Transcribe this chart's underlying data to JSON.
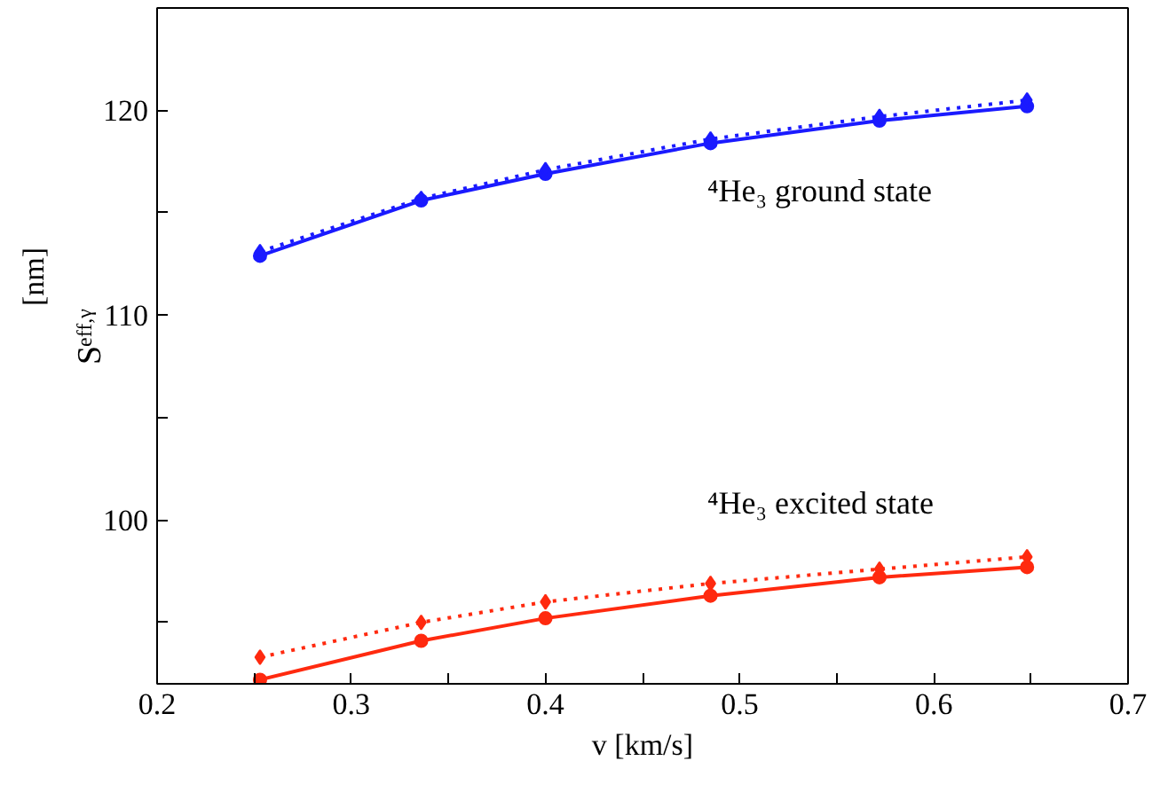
{
  "chart_data": {
    "type": "line",
    "xlabel": "v [km/s]",
    "ylabel": "S$_{eff,γ}$ [nm]",
    "x": [
      0.253,
      0.336,
      0.4,
      0.485,
      0.572,
      0.648
    ],
    "series": [
      {
        "color": "#1a1aff",
        "line_style": "solid",
        "marker": "circle",
        "values": [
          112.9,
          115.6,
          116.9,
          118.4,
          119.5,
          120.2
        ]
      },
      {
        "color": "#1a1aff",
        "line_style": "dotted",
        "marker": "diamond",
        "values": [
          113.1,
          115.7,
          117.1,
          118.6,
          119.7,
          120.5
        ]
      },
      {
        "color": "#ff2a0f",
        "line_style": "solid",
        "marker": "circle",
        "values": [
          92.2,
          94.1,
          95.2,
          96.3,
          97.2,
          97.7
        ]
      },
      {
        "color": "#ff2a0f",
        "line_style": "dotted",
        "marker": "diamond",
        "values": [
          93.3,
          95.0,
          96.0,
          96.9,
          97.6,
          98.2
        ]
      }
    ],
    "annotations": [
      "⁴He₃ ground state",
      "⁴He₃ excited state"
    ],
    "xlim": [
      0.2,
      0.7
    ],
    "ylim": [
      92,
      125
    ],
    "xticks": [
      0.2,
      {
        "value": 0.25,
        "label": null
      },
      0.3,
      {
        "value": 0.35,
        "label": null
      },
      0.4,
      {
        "value": 0.45,
        "label": null
      },
      0.5,
      {
        "value": 0.55,
        "label": null
      },
      0.6,
      {
        "value": 0.65,
        "label": null
      },
      0.7
    ],
    "yticks": [
      {
        "value": 95,
        "label": null
      },
      100,
      {
        "value": 105,
        "label": null
      },
      110,
      {
        "value": 115,
        "label": null
      },
      120
    ],
    "grid": false
  }
}
